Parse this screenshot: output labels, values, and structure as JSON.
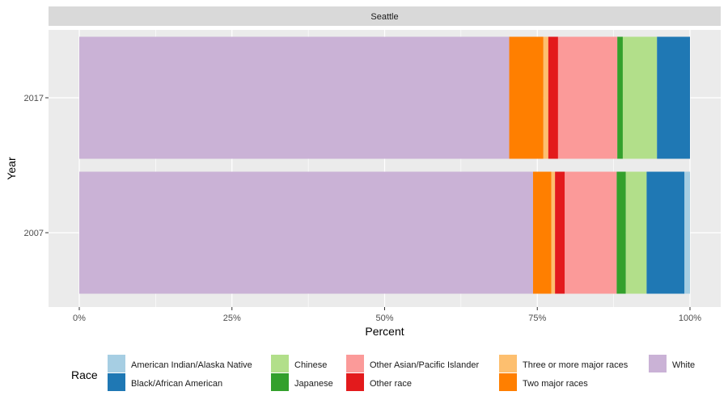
{
  "chart_data": {
    "type": "bar",
    "orientation": "horizontal",
    "stacked": true,
    "facet_label": "Seattle",
    "xlabel": "Percent",
    "ylabel": "Year",
    "xlim": [
      0,
      100
    ],
    "x_ticks": [
      "0%",
      "25%",
      "50%",
      "75%",
      "100%"
    ],
    "x_tick_values": [
      0,
      25,
      50,
      75,
      100
    ],
    "categories": [
      "2017",
      "2007"
    ],
    "grid": true,
    "legend_position": "bottom",
    "legend_title": "Race",
    "series": [
      {
        "name": "White",
        "color": "#cab2d6",
        "values": [
          70.4,
          74.3
        ]
      },
      {
        "name": "Two major races",
        "color": "#ff7f00",
        "values": [
          5.6,
          3.0
        ]
      },
      {
        "name": "Three or more major races",
        "color": "#fdbf6f",
        "values": [
          0.8,
          0.6
        ]
      },
      {
        "name": "Other race",
        "color": "#e31a1c",
        "values": [
          1.6,
          1.6
        ]
      },
      {
        "name": "Other Asian/Pacific Islander",
        "color": "#fb9a99",
        "values": [
          9.7,
          8.5
        ]
      },
      {
        "name": "Japanese",
        "color": "#33a02c",
        "values": [
          0.9,
          1.5
        ]
      },
      {
        "name": "Chinese",
        "color": "#b2df8a",
        "values": [
          5.6,
          3.4
        ]
      },
      {
        "name": "Black/African American",
        "color": "#1f78b4",
        "values": [
          5.4,
          6.2
        ]
      },
      {
        "name": "American Indian/Alaska Native",
        "color": "#a6cee3",
        "values": [
          0.0,
          0.9
        ]
      }
    ]
  }
}
